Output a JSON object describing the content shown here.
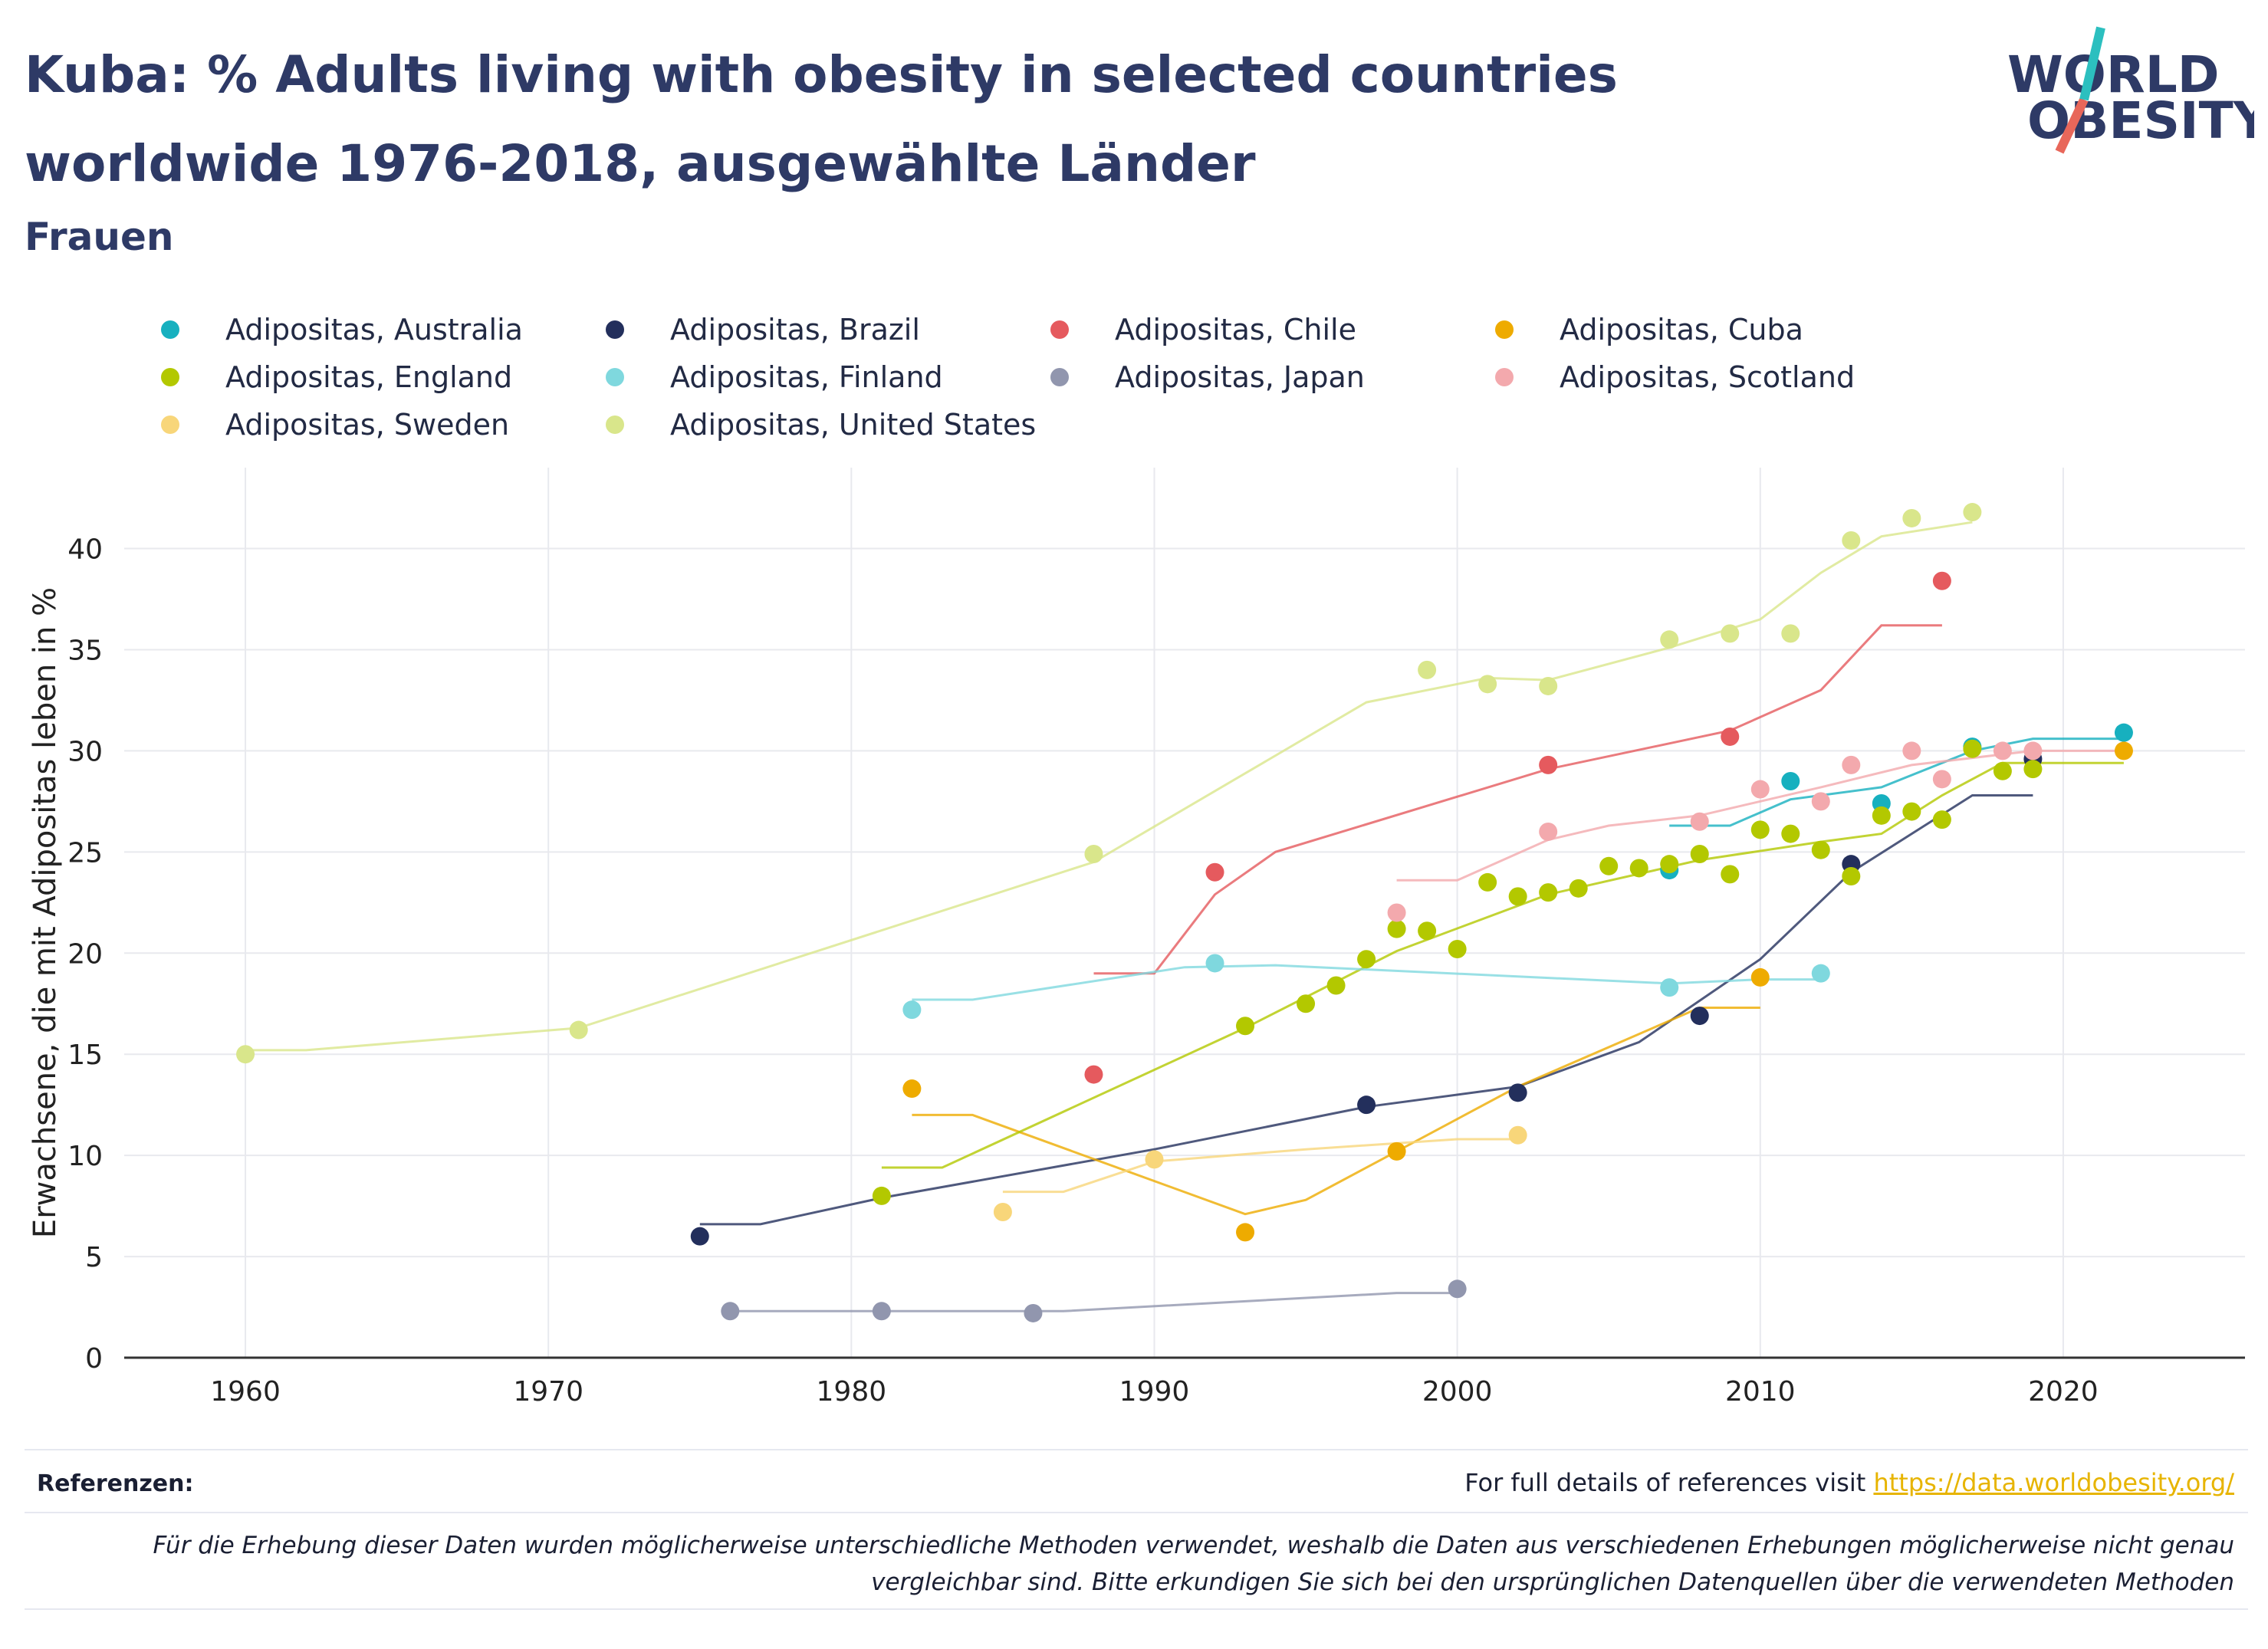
{
  "title": "Kuba: % Adults living with obesity in selected countries worldwide 1976-2018, ausgewählte Länder",
  "subtitle": "Frauen",
  "logo": {
    "line1": "WORLD",
    "line2": "OBESITY"
  },
  "references": {
    "label": "Referenzen:",
    "text": "For full details of references visit ",
    "link": "https://data.worldobesity.org/"
  },
  "note": "Für die Erhebung dieser Daten wurden möglicherweise unterschiedliche Methoden verwendet, weshalb die Daten aus verschiedenen Erhebungen möglicherweise nicht genau vergleichbar sind. Bitte erkundigen Sie sich bei den ursprünglichen Datenquellen über die verwendeten Methoden",
  "chart_data": {
    "type": "scatter",
    "ylabel": "Erwachsene, die mit Adipositas leben in %",
    "xlabel": "",
    "xlim": [
      1956,
      2026
    ],
    "ylim": [
      0,
      44
    ],
    "xticks": [
      1960,
      1970,
      1980,
      1990,
      2000,
      2010,
      2020
    ],
    "yticks": [
      0,
      5,
      10,
      15,
      20,
      25,
      30,
      35,
      40
    ],
    "grid": true,
    "legend": "top",
    "series": [
      {
        "name": "Adipositas, Australia",
        "color": "#17b0bf",
        "points": [
          [
            2007,
            24.1
          ],
          [
            2011,
            28.5
          ],
          [
            2014,
            27.4
          ],
          [
            2017,
            30.2
          ],
          [
            2022,
            30.9
          ]
        ],
        "trend": [
          [
            2007,
            26.3
          ],
          [
            2009,
            26.3
          ],
          [
            2011,
            27.6
          ],
          [
            2014,
            28.2
          ],
          [
            2017,
            30.0
          ],
          [
            2019,
            30.6
          ],
          [
            2022,
            30.6
          ]
        ]
      },
      {
        "name": "Adipositas, Brazil",
        "color": "#232f5c",
        "points": [
          [
            1975,
            6.0
          ],
          [
            1997,
            12.5
          ],
          [
            2002,
            13.1
          ],
          [
            2008,
            16.9
          ],
          [
            2013,
            24.4
          ],
          [
            2019,
            29.6
          ]
        ],
        "trend": [
          [
            1975,
            6.6
          ],
          [
            1977,
            6.6
          ],
          [
            1981,
            7.9
          ],
          [
            1990,
            10.3
          ],
          [
            1997,
            12.4
          ],
          [
            2002,
            13.4
          ],
          [
            2006,
            15.6
          ],
          [
            2010,
            19.7
          ],
          [
            2013,
            24.0
          ],
          [
            2017,
            27.8
          ],
          [
            2019,
            27.8
          ]
        ]
      },
      {
        "name": "Adipositas, Chile",
        "color": "#e55a5e",
        "points": [
          [
            1988,
            14.0
          ],
          [
            1992,
            24.0
          ],
          [
            2003,
            29.3
          ],
          [
            2009,
            30.7
          ],
          [
            2016,
            38.4
          ]
        ],
        "trend": [
          [
            1988,
            19.0
          ],
          [
            1990,
            19.0
          ],
          [
            1992,
            22.9
          ],
          [
            1994,
            25.0
          ],
          [
            2003,
            29.1
          ],
          [
            2009,
            31.0
          ],
          [
            2012,
            33.0
          ],
          [
            2014,
            36.2
          ],
          [
            2016,
            36.2
          ]
        ]
      },
      {
        "name": "Adipositas, Cuba",
        "color": "#eeab00",
        "points": [
          [
            1982,
            13.3
          ],
          [
            1993,
            6.2
          ],
          [
            1998,
            10.2
          ],
          [
            2010,
            18.8
          ],
          [
            2022,
            30.0
          ]
        ],
        "trend": [
          [
            1982,
            12.0
          ],
          [
            1984,
            12.0
          ],
          [
            1993,
            7.1
          ],
          [
            1995,
            7.8
          ],
          [
            1998,
            10.2
          ],
          [
            2002,
            13.4
          ],
          [
            2008,
            17.3
          ],
          [
            2010,
            17.3
          ]
        ]
      },
      {
        "name": "Adipositas, England",
        "color": "#b3c800",
        "points": [
          [
            1981,
            8.0
          ],
          [
            1993,
            16.4
          ],
          [
            1995,
            17.5
          ],
          [
            1996,
            18.4
          ],
          [
            1997,
            19.7
          ],
          [
            1998,
            21.2
          ],
          [
            1999,
            21.1
          ],
          [
            2000,
            20.2
          ],
          [
            2001,
            23.5
          ],
          [
            2002,
            22.8
          ],
          [
            2003,
            23.0
          ],
          [
            2004,
            23.2
          ],
          [
            2005,
            24.3
          ],
          [
            2006,
            24.2
          ],
          [
            2007,
            24.4
          ],
          [
            2008,
            24.9
          ],
          [
            2009,
            23.9
          ],
          [
            2010,
            26.1
          ],
          [
            2011,
            25.9
          ],
          [
            2012,
            25.1
          ],
          [
            2013,
            23.8
          ],
          [
            2014,
            26.8
          ],
          [
            2015,
            27.0
          ],
          [
            2016,
            26.6
          ],
          [
            2017,
            30.1
          ],
          [
            2018,
            29.0
          ],
          [
            2019,
            29.1
          ]
        ],
        "trend": [
          [
            1981,
            9.4
          ],
          [
            1983,
            9.4
          ],
          [
            1993,
            16.3
          ],
          [
            1998,
            20.1
          ],
          [
            2003,
            22.9
          ],
          [
            2008,
            24.6
          ],
          [
            2012,
            25.5
          ],
          [
            2014,
            25.9
          ],
          [
            2016,
            27.8
          ],
          [
            2018,
            29.4
          ],
          [
            2022,
            29.4
          ]
        ]
      },
      {
        "name": "Adipositas, Finland",
        "color": "#7fd8de",
        "points": [
          [
            1982,
            17.2
          ],
          [
            1992,
            19.5
          ],
          [
            2007,
            18.3
          ],
          [
            2012,
            19.0
          ]
        ],
        "trend": [
          [
            1982,
            17.7
          ],
          [
            1984,
            17.7
          ],
          [
            1991,
            19.3
          ],
          [
            1994,
            19.4
          ],
          [
            2007,
            18.5
          ],
          [
            2010,
            18.7
          ],
          [
            2012,
            18.7
          ]
        ]
      },
      {
        "name": "Adipositas, Japan",
        "color": "#9196ae",
        "points": [
          [
            1976,
            2.3
          ],
          [
            1981,
            2.3
          ],
          [
            1986,
            2.2
          ],
          [
            2000,
            3.4
          ]
        ],
        "trend": [
          [
            1976,
            2.3
          ],
          [
            1987,
            2.3
          ],
          [
            1998,
            3.2
          ],
          [
            2000,
            3.2
          ]
        ]
      },
      {
        "name": "Adipositas, Scotland",
        "color": "#f3a9ad",
        "points": [
          [
            1998,
            22.0
          ],
          [
            2003,
            26.0
          ],
          [
            2008,
            26.5
          ],
          [
            2010,
            28.1
          ],
          [
            2012,
            27.5
          ],
          [
            2013,
            29.3
          ],
          [
            2015,
            30.0
          ],
          [
            2016,
            28.6
          ],
          [
            2018,
            30.0
          ],
          [
            2019,
            30.0
          ]
        ],
        "trend": [
          [
            1998,
            23.6
          ],
          [
            2000,
            23.6
          ],
          [
            2003,
            25.6
          ],
          [
            2005,
            26.3
          ],
          [
            2008,
            26.8
          ],
          [
            2012,
            28.2
          ],
          [
            2015,
            29.3
          ],
          [
            2019,
            30.0
          ],
          [
            2022,
            30.0
          ]
        ]
      },
      {
        "name": "Adipositas, Sweden",
        "color": "#f8d67a",
        "points": [
          [
            1985,
            7.2
          ],
          [
            1990,
            9.8
          ],
          [
            2002,
            11.0
          ]
        ],
        "trend": [
          [
            1985,
            8.2
          ],
          [
            1987,
            8.2
          ],
          [
            1990,
            9.7
          ],
          [
            1995,
            10.3
          ],
          [
            2000,
            10.8
          ],
          [
            2002,
            10.8
          ]
        ]
      },
      {
        "name": "Adipositas, United States",
        "color": "#d9e68b",
        "points": [
          [
            1960,
            15.0
          ],
          [
            1971,
            16.2
          ],
          [
            1988,
            24.9
          ],
          [
            1999,
            34.0
          ],
          [
            2001,
            33.3
          ],
          [
            2003,
            33.2
          ],
          [
            2007,
            35.5
          ],
          [
            2009,
            35.8
          ],
          [
            2011,
            35.8
          ],
          [
            2013,
            40.4
          ],
          [
            2015,
            41.5
          ],
          [
            2017,
            41.8
          ]
        ],
        "trend": [
          [
            1960,
            15.2
          ],
          [
            1962,
            15.2
          ],
          [
            1971,
            16.3
          ],
          [
            1988,
            24.5
          ],
          [
            1997,
            32.4
          ],
          [
            2001,
            33.6
          ],
          [
            2003,
            33.5
          ],
          [
            2007,
            35.1
          ],
          [
            2010,
            36.5
          ],
          [
            2012,
            38.8
          ],
          [
            2014,
            40.6
          ],
          [
            2017,
            41.3
          ]
        ]
      }
    ]
  }
}
